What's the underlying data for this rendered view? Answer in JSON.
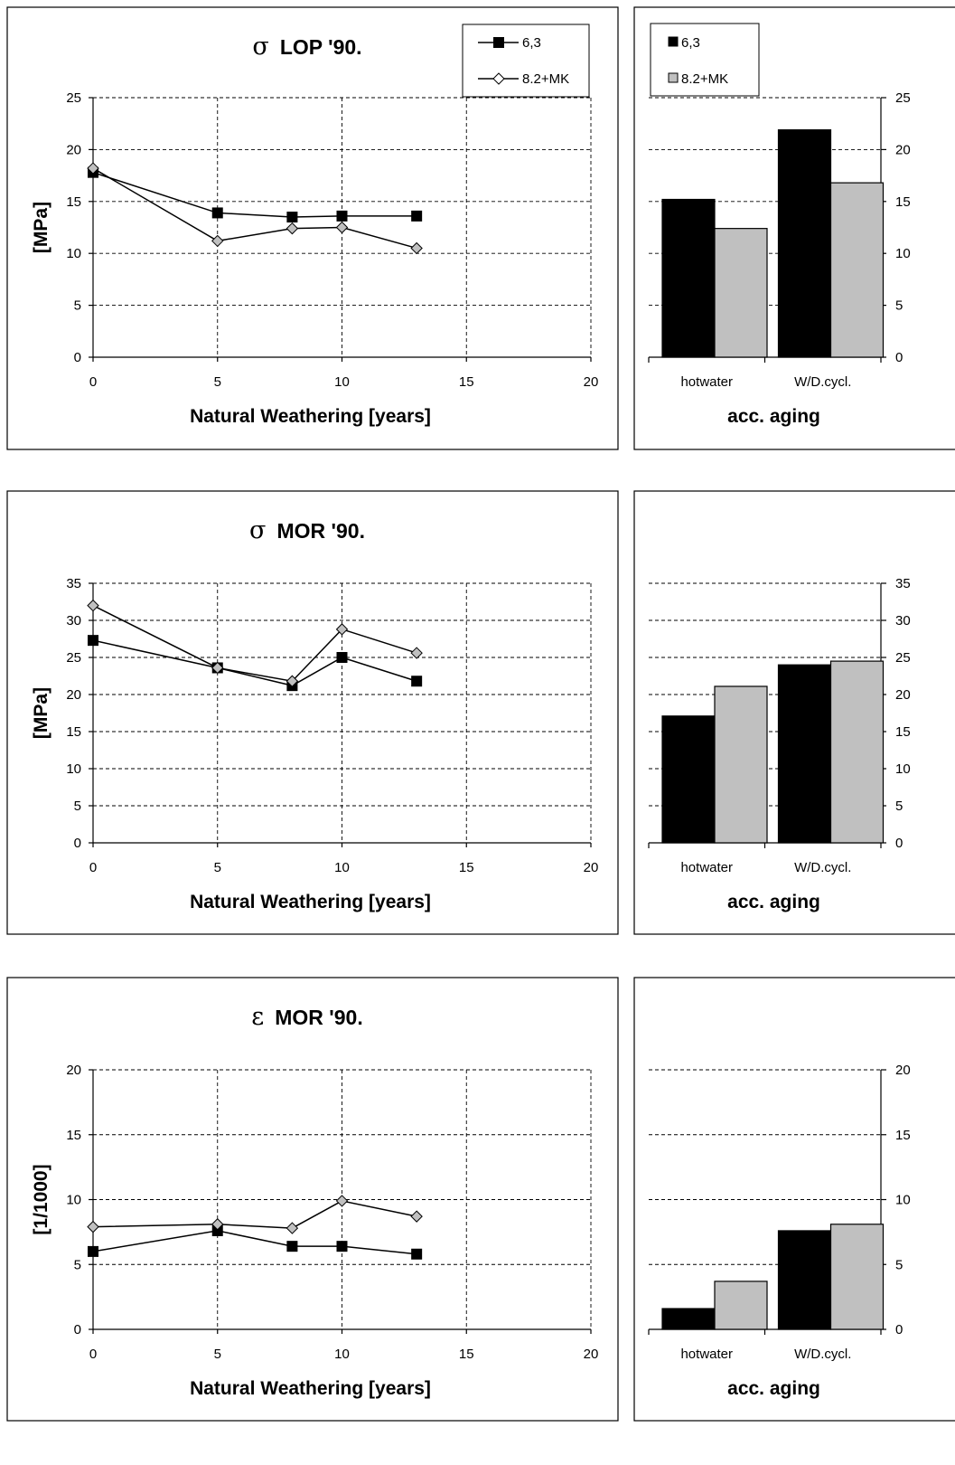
{
  "charts": [
    {
      "type": "line",
      "title_symbol": "σ",
      "title": "LOP  '90.",
      "xlabel": "Natural Weathering [years]",
      "ylabel": "[MPa]",
      "xlim": [
        0,
        20
      ],
      "xticks": [
        0,
        5,
        10,
        15,
        20
      ],
      "ylim": [
        0,
        25
      ],
      "yticks": [
        0,
        5,
        10,
        15,
        20,
        25
      ],
      "grid": true,
      "legend": "top-right",
      "series": [
        {
          "name": "6,3",
          "marker": "square",
          "x": [
            0,
            5,
            8,
            10,
            13
          ],
          "values": [
            17.8,
            13.9,
            13.5,
            13.6,
            13.6
          ]
        },
        {
          "name": "8.2+MK",
          "marker": "diamond",
          "x": [
            0,
            5,
            8,
            10,
            13
          ],
          "values": [
            18.2,
            11.2,
            12.4,
            12.5,
            10.5
          ]
        }
      ]
    },
    {
      "type": "bar",
      "xlabel": "acc. aging",
      "categories": [
        "hotwater",
        "W/D.cycl."
      ],
      "ylim": [
        0,
        25
      ],
      "yticks": [
        0,
        5,
        10,
        15,
        20,
        25
      ],
      "grid": true,
      "legend": "top-left",
      "series": [
        {
          "name": "6,3",
          "color": "#000000",
          "values": [
            15.2,
            21.9
          ]
        },
        {
          "name": "8.2+MK",
          "color": "#c0c0c0",
          "values": [
            12.4,
            16.8
          ]
        }
      ]
    },
    {
      "type": "line",
      "title_symbol": "σ",
      "title": "MOR  '90.",
      "xlabel": "Natural Weathering [years]",
      "ylabel": "[MPa]",
      "xlim": [
        0,
        20
      ],
      "xticks": [
        0,
        5,
        10,
        15,
        20
      ],
      "ylim": [
        0,
        35
      ],
      "yticks": [
        0,
        5,
        10,
        15,
        20,
        25,
        30,
        35
      ],
      "grid": true,
      "series": [
        {
          "name": "6,3",
          "marker": "square",
          "x": [
            0,
            5,
            8,
            10,
            13
          ],
          "values": [
            27.3,
            23.6,
            21.2,
            25.0,
            21.8
          ]
        },
        {
          "name": "8.2+MK",
          "marker": "diamond",
          "x": [
            0,
            5,
            8,
            10,
            13
          ],
          "values": [
            32.0,
            23.6,
            21.8,
            28.8,
            25.6
          ]
        }
      ]
    },
    {
      "type": "bar",
      "xlabel": "acc. aging",
      "categories": [
        "hotwater",
        "W/D.cycl."
      ],
      "ylim": [
        0,
        35
      ],
      "yticks": [
        0,
        5,
        10,
        15,
        20,
        25,
        30,
        35
      ],
      "grid": true,
      "series": [
        {
          "name": "6,3",
          "color": "#000000",
          "values": [
            17.1,
            24.0
          ]
        },
        {
          "name": "8.2+MK",
          "color": "#c0c0c0",
          "values": [
            21.1,
            24.5
          ]
        }
      ]
    },
    {
      "type": "line",
      "title_symbol": "ε",
      "title": "MOR  '90.",
      "xlabel": "Natural Weathering [years]",
      "ylabel": "[1/1000]",
      "xlim": [
        0,
        20
      ],
      "xticks": [
        0,
        5,
        10,
        15,
        20
      ],
      "ylim": [
        0,
        20
      ],
      "yticks": [
        0,
        5,
        10,
        15,
        20
      ],
      "grid": true,
      "series": [
        {
          "name": "6,3",
          "marker": "square",
          "x": [
            0,
            5,
            8,
            10,
            13
          ],
          "values": [
            6.0,
            7.6,
            6.4,
            6.4,
            5.8
          ]
        },
        {
          "name": "8.2+MK",
          "marker": "diamond",
          "x": [
            0,
            5,
            8,
            10,
            13
          ],
          "values": [
            7.9,
            8.1,
            7.8,
            9.9,
            8.7
          ]
        }
      ]
    },
    {
      "type": "bar",
      "xlabel": "acc. aging",
      "categories": [
        "hotwater",
        "W/D.cycl."
      ],
      "ylim": [
        0,
        20
      ],
      "yticks": [
        0,
        5,
        10,
        15,
        20
      ],
      "grid": true,
      "series": [
        {
          "name": "6,3",
          "color": "#000000",
          "values": [
            1.6,
            7.6
          ]
        },
        {
          "name": "8.2+MK",
          "color": "#c0c0c0",
          "values": [
            3.7,
            8.1
          ]
        }
      ]
    }
  ]
}
